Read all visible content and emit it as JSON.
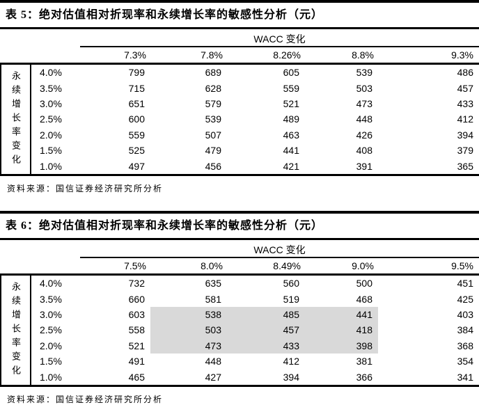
{
  "colors": {
    "highlight_fill": "#d9d9d9",
    "rule": "#000000",
    "text": "#000000"
  },
  "tables": [
    {
      "id": "table-5",
      "title": "表 5：绝对估值相对折现率和永续增长率的敏感性分析（元）",
      "group_header": "WACC 变化",
      "row_axis_label": "永续增长率变化",
      "columns": [
        "7.3%",
        "7.8%",
        "8.26%",
        "8.8%",
        "9.3%"
      ],
      "rows": [
        {
          "label": "4.0%",
          "values": [
            799,
            689,
            605,
            539,
            486
          ]
        },
        {
          "label": "3.5%",
          "values": [
            715,
            628,
            559,
            503,
            457
          ]
        },
        {
          "label": "3.0%",
          "values": [
            651,
            579,
            521,
            473,
            433
          ]
        },
        {
          "label": "2.5%",
          "values": [
            600,
            539,
            489,
            448,
            412
          ]
        },
        {
          "label": "2.0%",
          "values": [
            559,
            507,
            463,
            426,
            394
          ]
        },
        {
          "label": "1.5%",
          "values": [
            525,
            479,
            441,
            408,
            379
          ]
        },
        {
          "label": "1.0%",
          "values": [
            497,
            456,
            421,
            391,
            365
          ]
        }
      ],
      "highlight": null,
      "source": "资料来源：国信证券经济研究所分析"
    },
    {
      "id": "table-6",
      "title": "表 6：绝对估值相对折现率和永续增长率的敏感性分析（元）",
      "group_header": "WACC 变化",
      "row_axis_label": "永续增长率变化",
      "columns": [
        "7.5%",
        "8.0%",
        "8.49%",
        "9.0%",
        "9.5%"
      ],
      "rows": [
        {
          "label": "4.0%",
          "values": [
            732,
            635,
            560,
            500,
            451
          ]
        },
        {
          "label": "3.5%",
          "values": [
            660,
            581,
            519,
            468,
            425
          ]
        },
        {
          "label": "3.0%",
          "values": [
            603,
            538,
            485,
            441,
            403
          ]
        },
        {
          "label": "2.5%",
          "values": [
            558,
            503,
            457,
            418,
            384
          ]
        },
        {
          "label": "2.0%",
          "values": [
            521,
            473,
            433,
            398,
            368
          ]
        },
        {
          "label": "1.5%",
          "values": [
            491,
            448,
            412,
            381,
            354
          ]
        },
        {
          "label": "1.0%",
          "values": [
            465,
            427,
            394,
            366,
            341
          ]
        }
      ],
      "highlight": {
        "row_start": 2,
        "row_end": 4,
        "col_start": 1,
        "col_end": 3
      },
      "source": "资料来源：国信证券经济研究所分析"
    }
  ]
}
